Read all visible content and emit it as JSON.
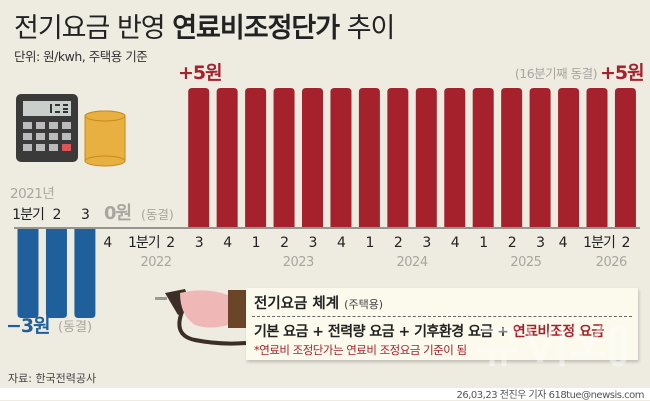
{
  "title_plain": "전기요금 반영 ",
  "title_bold": "연료비조정단가",
  "title_end": " 추이",
  "unit": "단위: 원/kwh, 주택용 기준",
  "colors": {
    "positive": "#a5222d",
    "negative": "#1e5f9c",
    "background": "#eeebe1"
  },
  "chart_data": {
    "type": "bar",
    "categories": [
      "2021 1분기",
      "2021 2",
      "2021 3",
      "2021 4",
      "2022 1분기",
      "2022 2",
      "2022 3",
      "2022 4",
      "2023 1",
      "2023 2",
      "2023 3",
      "2023 4",
      "2024 1",
      "2024 2",
      "2024 3",
      "2024 4",
      "2025 1",
      "2025 2",
      "2025 3",
      "2025 4",
      "2026 1분기",
      "2026 2"
    ],
    "tick_labels": [
      "1분기",
      "2",
      "3",
      "4",
      "1분기",
      "2",
      "3",
      "4",
      "1",
      "2",
      "3",
      "4",
      "1",
      "2",
      "3",
      "4",
      "1",
      "2",
      "3",
      "4",
      "1분기",
      "2"
    ],
    "year_labels": [
      {
        "label": "2021년",
        "index": 0
      },
      {
        "label": "2022",
        "index": 4.5
      },
      {
        "label": "2023",
        "index": 9.5
      },
      {
        "label": "2024",
        "index": 13.5
      },
      {
        "label": "2025",
        "index": 17.5
      },
      {
        "label": "2026",
        "index": 20.5
      }
    ],
    "values": [
      -3,
      -3,
      -3,
      0,
      0,
      0,
      5,
      5,
      5,
      5,
      5,
      5,
      5,
      5,
      5,
      5,
      5,
      5,
      5,
      5,
      5,
      5
    ],
    "unit": "원/kwh",
    "annotations": {
      "neg": "−3원",
      "neg_note": "(동결)",
      "zero": "0원",
      "zero_note": "(동결)",
      "pos_first": "+5원",
      "pos_last": "+5원",
      "pos_note": "(16분기째 동결)"
    }
  },
  "box": {
    "title": "전기요금 체계",
    "title_note": "(주택용)",
    "formula_parts": [
      "기본 요금 + 전력량 요금 + 기후환경 요금 + ",
      "연료비조정 요금"
    ],
    "note": "*연료비 조정단가는 연료비 조정요금 기준이 됨"
  },
  "source": "자료: 한국전력공사",
  "credit": "26,03,23 전진우 기자 618tue@newsis.com",
  "watermark": "뉴시스"
}
